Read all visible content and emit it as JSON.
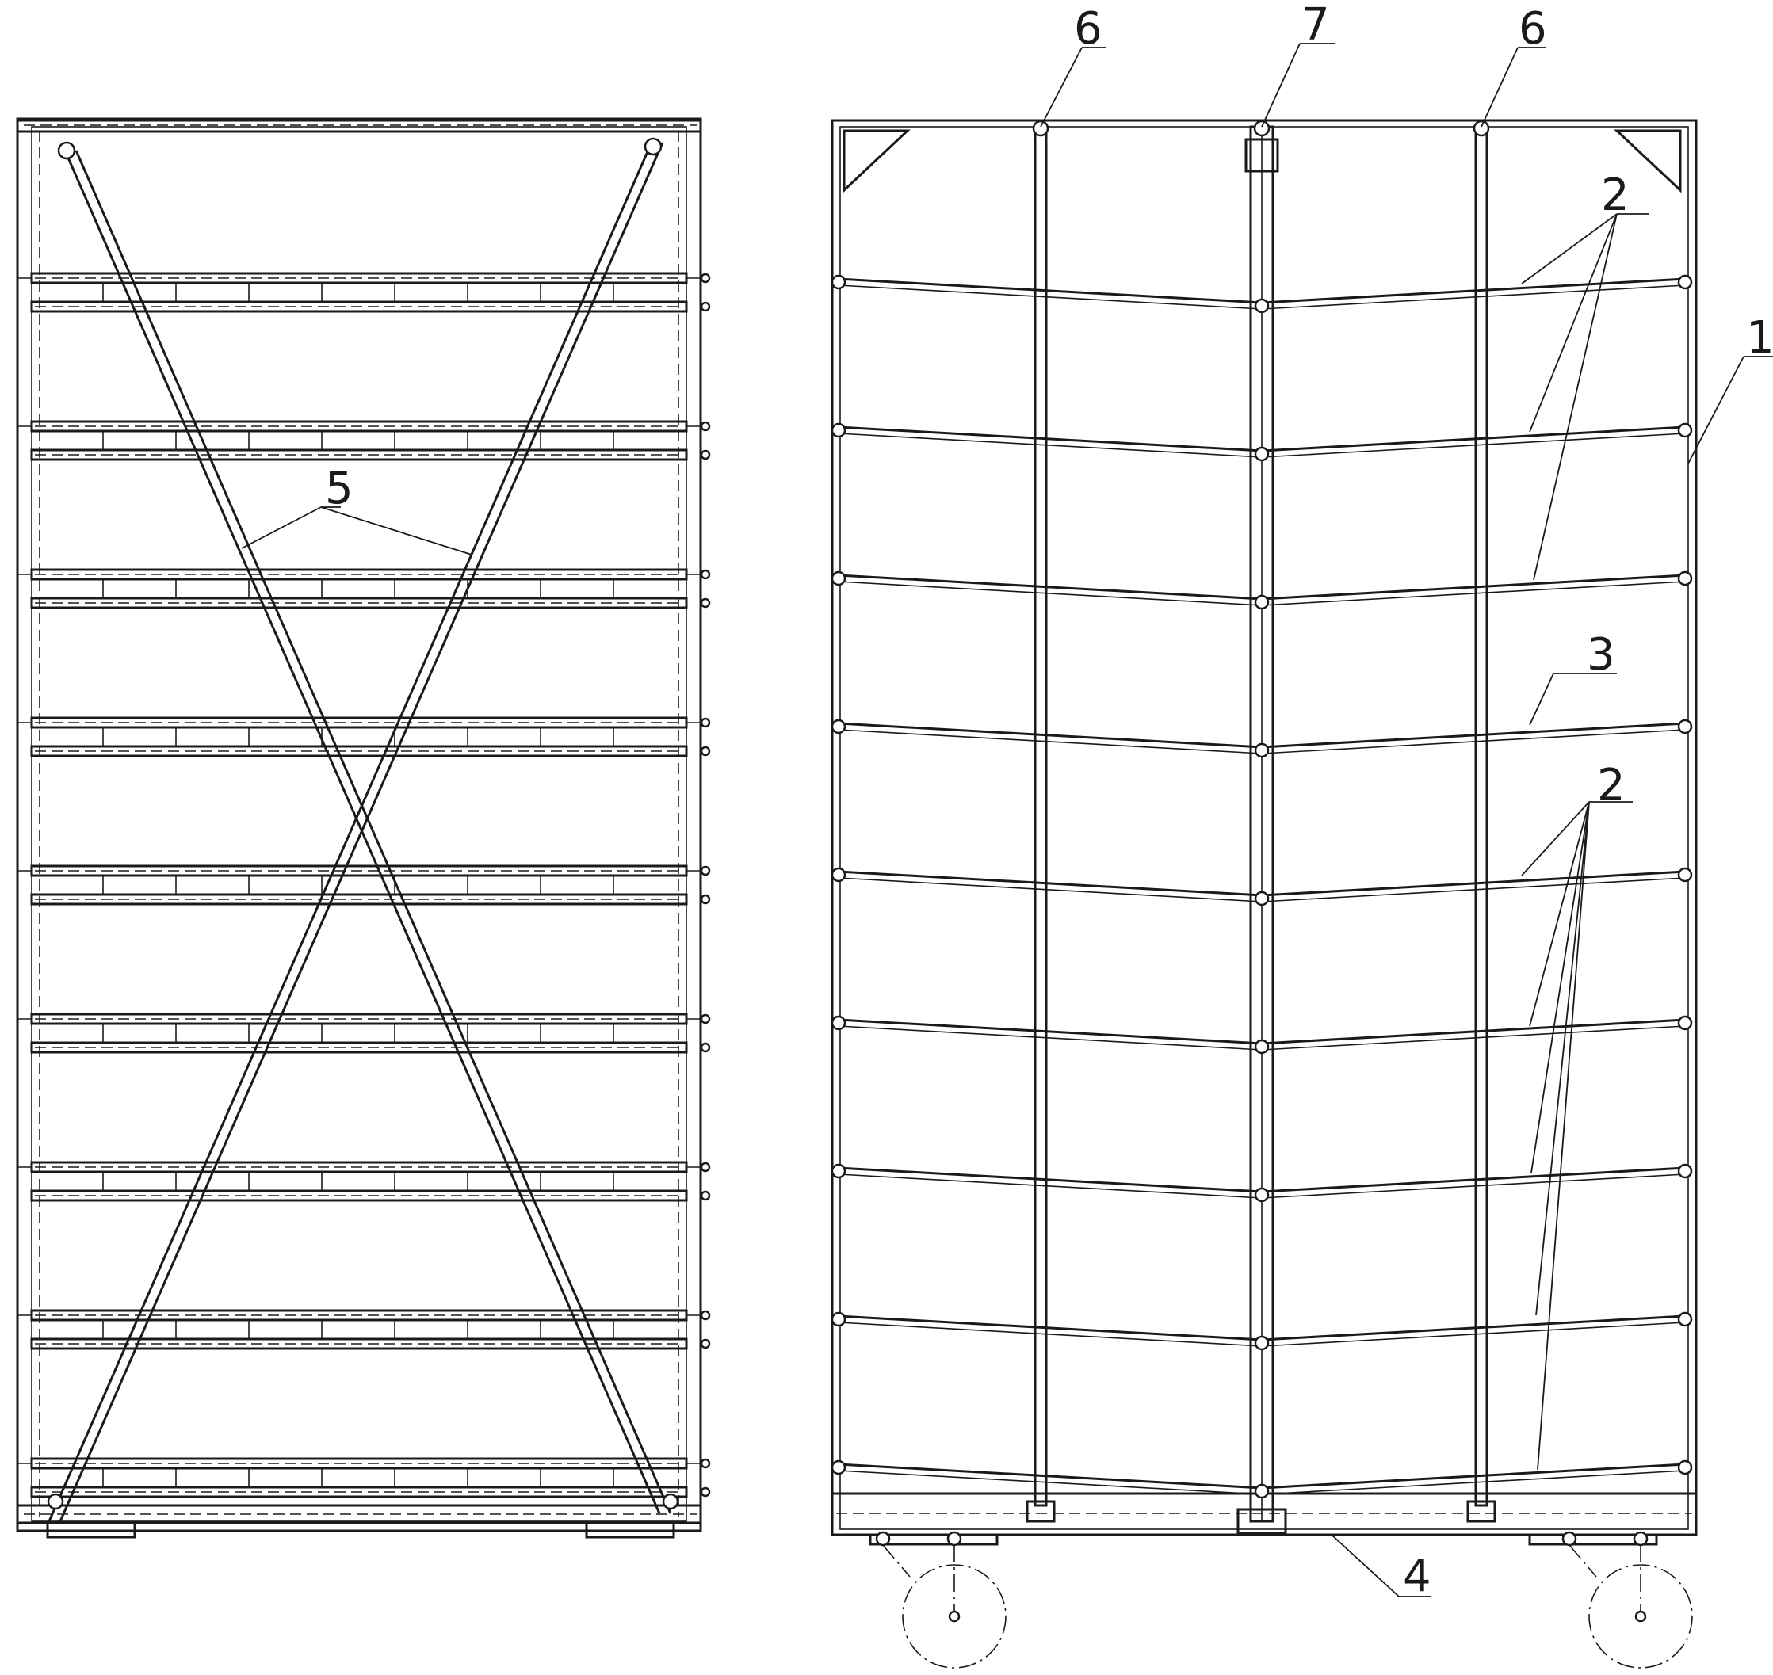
{
  "callouts": {
    "c1": "1",
    "c2a": "2",
    "c2b": "2",
    "c3": "3",
    "c4": "4",
    "c5": "5",
    "c6a": "6",
    "c6b": "6",
    "c7": "7"
  },
  "colors": {
    "ink": "#1a1a1a",
    "paper": "#ffffff"
  }
}
